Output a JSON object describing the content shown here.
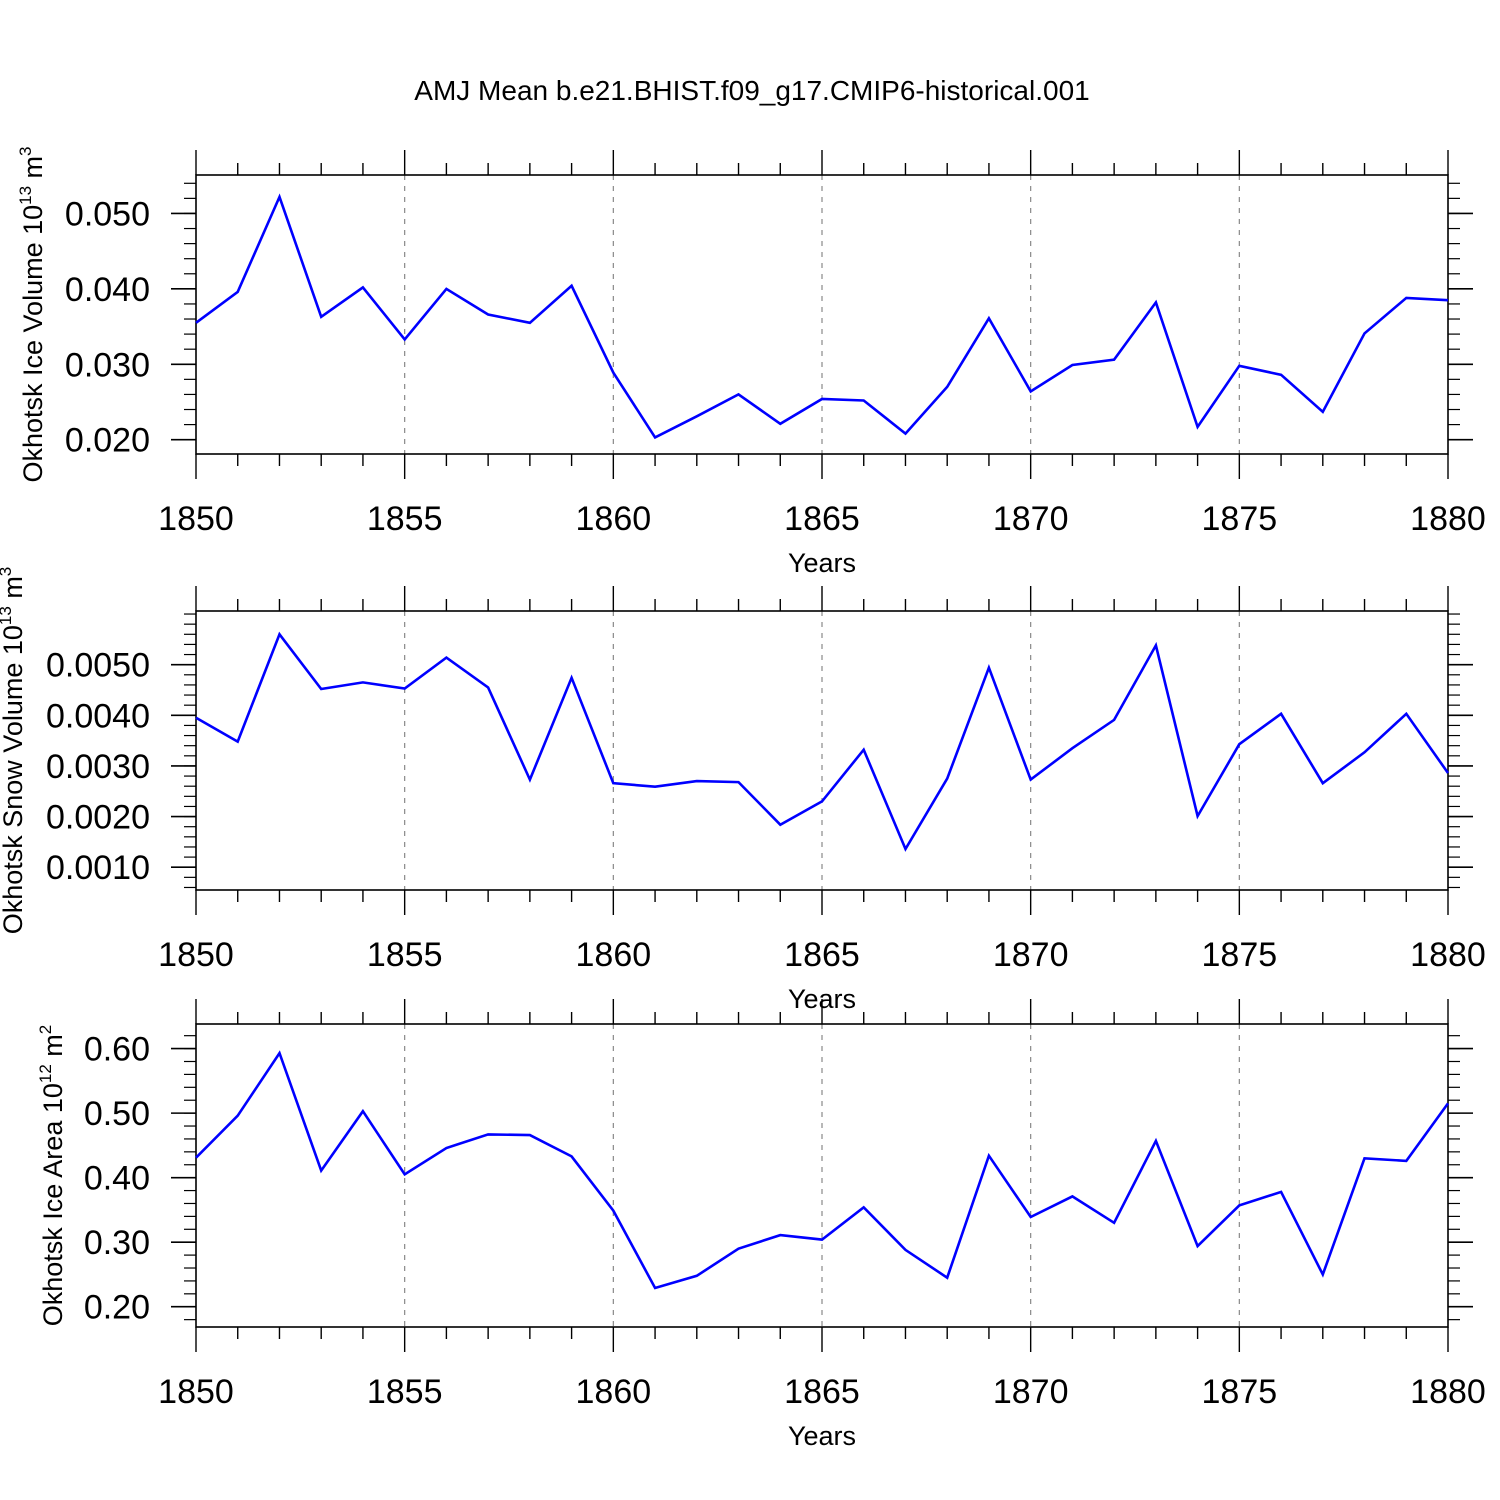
{
  "title": "AMJ Mean b.e21.BHIST.f09_g17.CMIP6-historical.001",
  "chart_data": [
    {
      "type": "line",
      "ylabel": {
        "prefix": "Okhotsk Ice Volume 10",
        "exp": "13",
        "unit": " m",
        "unit_exp": "3"
      },
      "xlabel": "Years",
      "xlim": [
        1850,
        1880
      ],
      "ylim": [
        0.0181,
        0.0551
      ],
      "xticks": [
        "1850",
        "1855",
        "1860",
        "1865",
        "1870",
        "1875",
        "1880"
      ],
      "yticks": [
        {
          "value": 0.02,
          "label": "0.020"
        },
        {
          "value": 0.03,
          "label": "0.030"
        },
        {
          "value": 0.04,
          "label": "0.040"
        },
        {
          "value": 0.05,
          "label": "0.050"
        }
      ],
      "ygrid_minor_step": 0.002,
      "series": [
        {
          "name": "Okhotsk Ice Volume",
          "color": "#0000ff",
          "x": [
            1850,
            1851,
            1852,
            1853,
            1854,
            1855,
            1856,
            1857,
            1858,
            1859,
            1860,
            1861,
            1862,
            1863,
            1864,
            1865,
            1866,
            1867,
            1868,
            1869,
            1870,
            1871,
            1872,
            1873,
            1874,
            1875,
            1876,
            1877,
            1878,
            1879,
            1880
          ],
          "values": [
            0.0355,
            0.0396,
            0.0522,
            0.0363,
            0.0402,
            0.0333,
            0.04,
            0.0366,
            0.0355,
            0.0404,
            0.0289,
            0.0203,
            0.0231,
            0.026,
            0.0221,
            0.0254,
            0.0252,
            0.0208,
            0.027,
            0.0361,
            0.0264,
            0.0299,
            0.0306,
            0.0382,
            0.0217,
            0.0298,
            0.0286,
            0.0237,
            0.0341,
            0.0388,
            0.0385
          ]
        }
      ]
    },
    {
      "type": "line",
      "ylabel": {
        "prefix": "Okhotsk Snow Volume 10",
        "exp": "13",
        "unit": " m",
        "unit_exp": "3"
      },
      "xlabel": "Years",
      "xlim": [
        1850,
        1880
      ],
      "ylim": [
        0.00055,
        0.00606
      ],
      "xticks": [
        "1850",
        "1855",
        "1860",
        "1865",
        "1870",
        "1875",
        "1880"
      ],
      "yticks": [
        {
          "value": 0.001,
          "label": "0.0010"
        },
        {
          "value": 0.002,
          "label": "0.0020"
        },
        {
          "value": 0.003,
          "label": "0.0030"
        },
        {
          "value": 0.004,
          "label": "0.0040"
        },
        {
          "value": 0.005,
          "label": "0.0050"
        }
      ],
      "ygrid_minor_step": 0.0002,
      "series": [
        {
          "name": "Okhotsk Snow Volume",
          "color": "#0000ff",
          "x": [
            1850,
            1851,
            1852,
            1853,
            1854,
            1855,
            1856,
            1857,
            1858,
            1859,
            1860,
            1861,
            1862,
            1863,
            1864,
            1865,
            1866,
            1867,
            1868,
            1869,
            1870,
            1871,
            1872,
            1873,
            1874,
            1875,
            1876,
            1877,
            1878,
            1879,
            1880
          ],
          "values": [
            0.00395,
            0.00348,
            0.0056,
            0.00452,
            0.00465,
            0.00453,
            0.00514,
            0.00455,
            0.00273,
            0.00474,
            0.00266,
            0.00259,
            0.0027,
            0.00268,
            0.00184,
            0.0023,
            0.00332,
            0.00136,
            0.00275,
            0.00494,
            0.00273,
            0.00335,
            0.00391,
            0.00538,
            0.00201,
            0.00343,
            0.00403,
            0.00266,
            0.00327,
            0.00403,
            0.00286
          ]
        }
      ]
    },
    {
      "type": "line",
      "ylabel": {
        "prefix": "Okhotsk Ice Area 10",
        "exp": "12",
        "unit": " m",
        "unit_exp": "2"
      },
      "xlabel": "Years",
      "xlim": [
        1850,
        1880
      ],
      "ylim": [
        0.1686,
        0.6381
      ],
      "xticks": [
        "1850",
        "1855",
        "1860",
        "1865",
        "1870",
        "1875",
        "1880"
      ],
      "yticks": [
        {
          "value": 0.2,
          "label": "0.20"
        },
        {
          "value": 0.3,
          "label": "0.30"
        },
        {
          "value": 0.4,
          "label": "0.40"
        },
        {
          "value": 0.5,
          "label": "0.50"
        },
        {
          "value": 0.6,
          "label": "0.60"
        }
      ],
      "ygrid_minor_step": 0.02,
      "series": [
        {
          "name": "Okhotsk Ice Area",
          "color": "#0000ff",
          "x": [
            1850,
            1851,
            1852,
            1853,
            1854,
            1855,
            1856,
            1857,
            1858,
            1859,
            1860,
            1861,
            1862,
            1863,
            1864,
            1865,
            1866,
            1867,
            1868,
            1869,
            1870,
            1871,
            1872,
            1873,
            1874,
            1875,
            1876,
            1877,
            1878,
            1879,
            1880
          ],
          "values": [
            0.431,
            0.496,
            0.593,
            0.411,
            0.503,
            0.405,
            0.446,
            0.467,
            0.466,
            0.433,
            0.349,
            0.229,
            0.248,
            0.29,
            0.311,
            0.304,
            0.354,
            0.288,
            0.245,
            0.434,
            0.339,
            0.371,
            0.33,
            0.457,
            0.294,
            0.357,
            0.378,
            0.25,
            0.43,
            0.426,
            0.515
          ]
        }
      ]
    }
  ]
}
